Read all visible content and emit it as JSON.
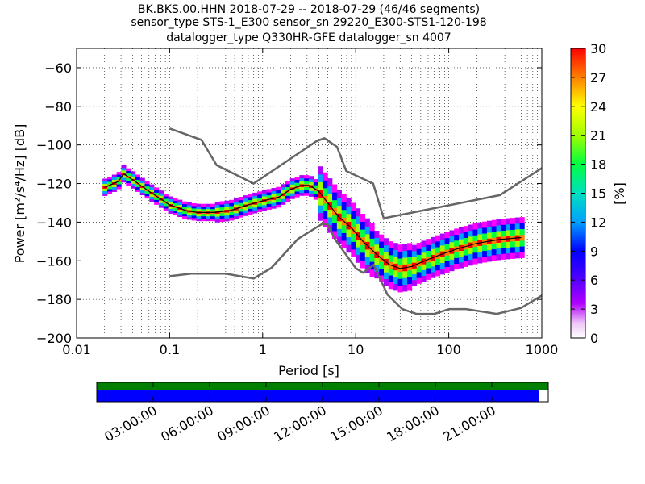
{
  "chart_data": {
    "type": "heatmap",
    "title_lines": [
      "BK.BKS.00.HHN   2018-07-29 -- 2018-07-29  (46/46 segments)",
      "sensor_type STS-1_E300 sensor_sn 29220_E300-STS1-120-198",
      "datalogger_type Q330HR-GFE datalogger_sn 4007"
    ],
    "xlabel": "Period [s]",
    "ylabel": "Power [m²/s⁴/Hz] [dB]",
    "x_scale": "log",
    "xlim": [
      0.01,
      1000
    ],
    "ylim": [
      -200,
      -50
    ],
    "x_ticks": [
      0.01,
      0.1,
      1,
      10,
      100,
      1000
    ],
    "x_tick_labels": [
      "0.01",
      "0.1",
      "1",
      "10",
      "100",
      "1000"
    ],
    "y_ticks": [
      -200,
      -180,
      -160,
      -140,
      -120,
      -100,
      -80,
      -60
    ],
    "y_tick_labels": [
      "−200",
      "−180",
      "−160",
      "−140",
      "−120",
      "−100",
      "−80",
      "−60"
    ],
    "grid": true,
    "colorbar": {
      "label": "[%]",
      "range": [
        0,
        30
      ],
      "ticks": [
        0,
        3,
        6,
        9,
        12,
        15,
        18,
        21,
        24,
        27,
        30
      ]
    },
    "noise_model_high": {
      "x": [
        0.1,
        0.22,
        0.32,
        0.8,
        3.8,
        4.6,
        6.3,
        7.9,
        15.4,
        20
      ],
      "y": [
        -91.5,
        -97.4,
        -110.5,
        -120,
        -98,
        -96.5,
        -101,
        -113.5,
        -120,
        -138
      ]
    },
    "noise_model_high_lf": {
      "x": [
        20,
        354,
        1000
      ],
      "y": [
        -138,
        -126,
        -112
      ]
    },
    "noise_model_low": {
      "x": [
        0.1,
        0.17,
        0.4,
        0.8,
        1.24,
        2.4,
        4.3,
        5,
        6,
        10,
        12,
        15.6,
        21.9,
        31.6,
        45,
        70,
        101,
        154,
        328,
        600,
        1000
      ],
      "y": [
        -168,
        -166.7,
        -166.7,
        -169.2,
        -163.7,
        -148.6,
        -141.1,
        -141.1,
        -149,
        -163.8,
        -166.2,
        -162.1,
        -177.5,
        -185,
        -187.5,
        -187.5,
        -185,
        -185,
        -187.5,
        -184.4,
        -178
      ]
    },
    "median": {
      "x": [
        0.02,
        0.028,
        0.032,
        0.04,
        0.06,
        0.1,
        0.15,
        0.2,
        0.3,
        0.45,
        0.7,
        1,
        1.5,
        2,
        2.6,
        3.2,
        4,
        5,
        6.5,
        9,
        12,
        17,
        23,
        30,
        40,
        55,
        80,
        120,
        200,
        350,
        600
      ],
      "y": [
        -122,
        -119,
        -115,
        -118,
        -124,
        -131,
        -134,
        -135,
        -135,
        -134,
        -131,
        -129,
        -127,
        -123,
        -121,
        -121,
        -124,
        -130,
        -137,
        -143,
        -150,
        -157,
        -162,
        -164,
        -163,
        -160,
        -157,
        -154,
        -151,
        -149,
        -148
      ]
    },
    "segments_bar": {
      "tick_labels": [
        "03:00:00",
        "06:00:00",
        "09:00:00",
        "12:00:00",
        "15:00:00",
        "18:00:00",
        "21:00:00"
      ],
      "coverage_color": "#008000",
      "segment_color": "#0000ff",
      "segment_fraction": 0.979
    }
  }
}
